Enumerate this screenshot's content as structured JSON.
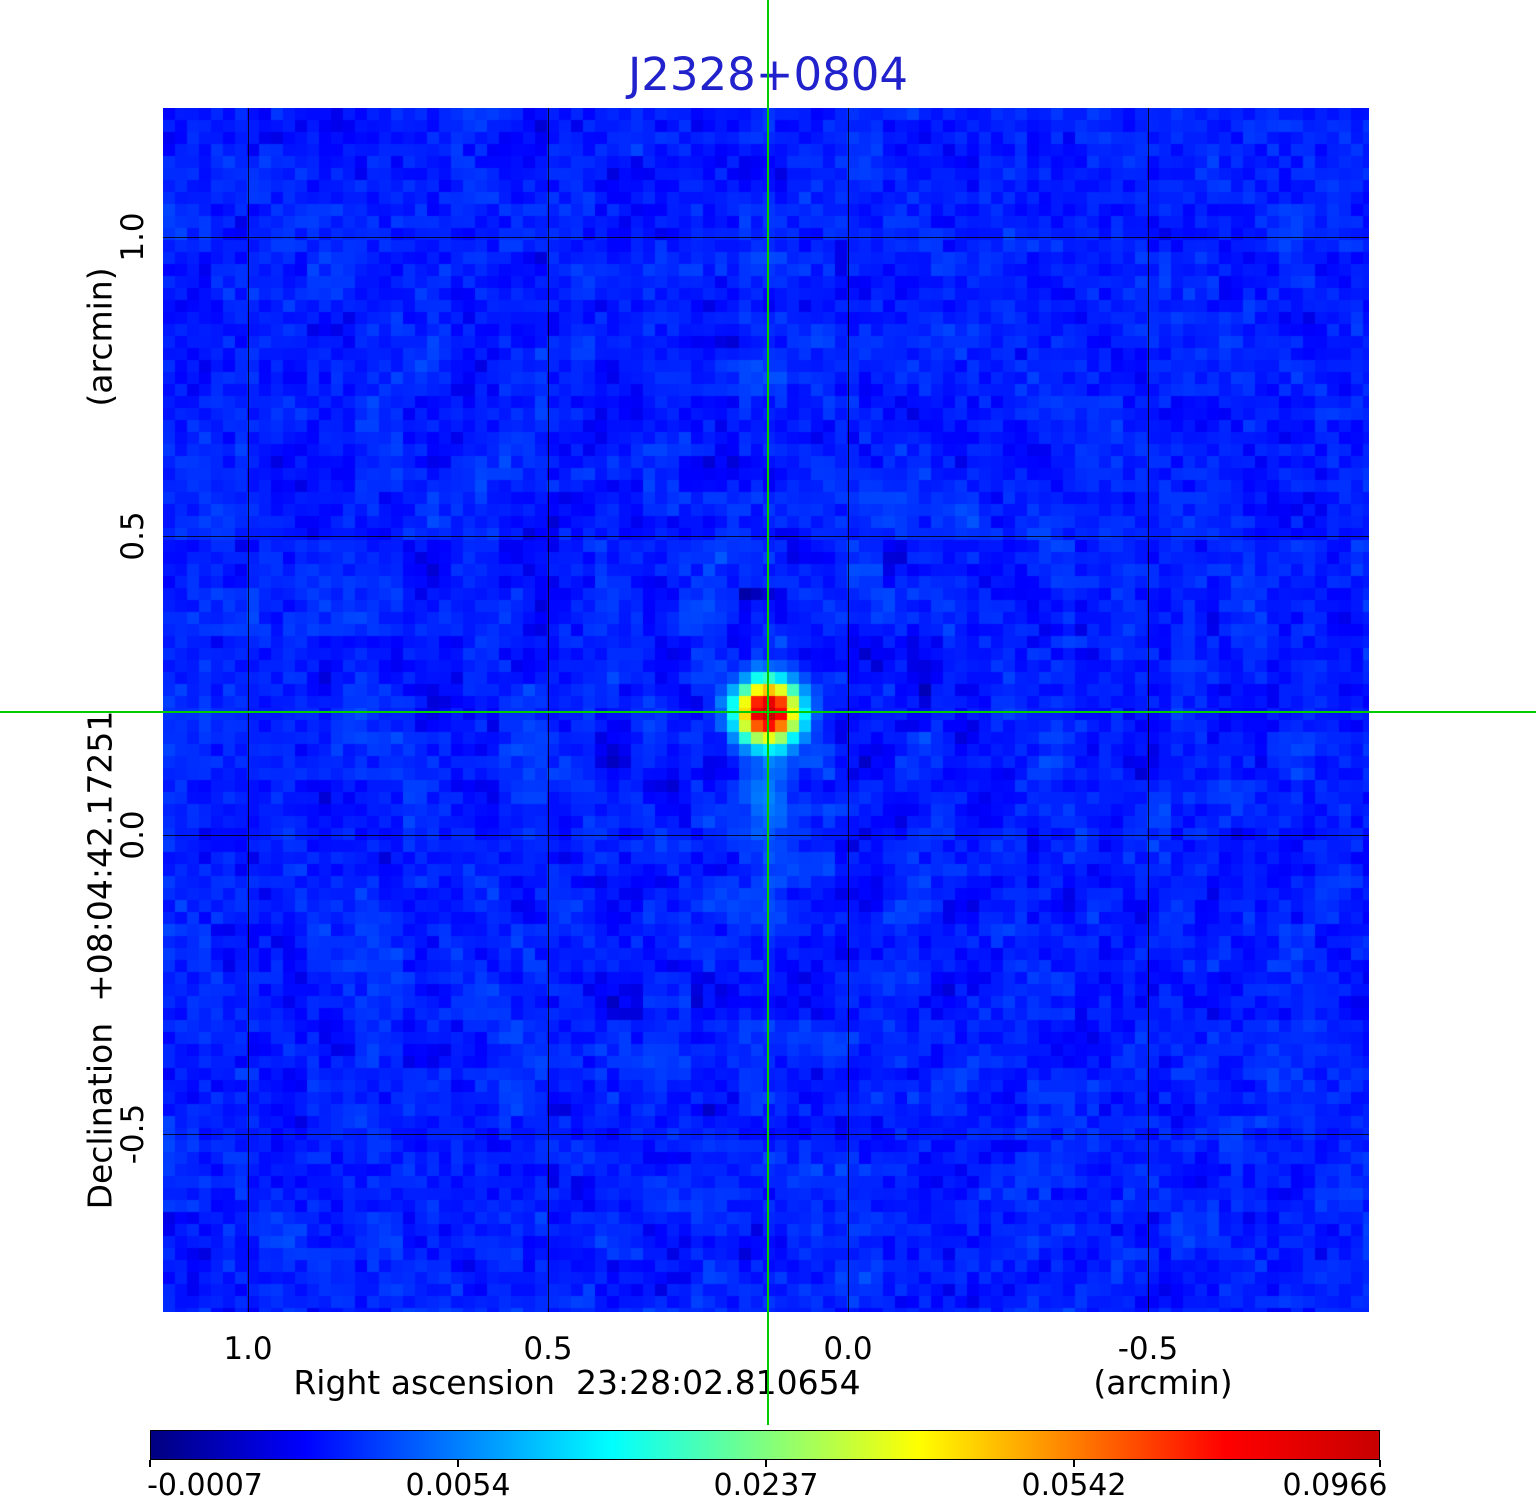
{
  "colors": {
    "title": "#2222cc",
    "crosshair": "#00cc00",
    "grid": "#000000",
    "page_background": "#ffffff",
    "text": "#000000"
  },
  "chart_data": {
    "type": "heatmap",
    "title": "J2328+0804",
    "xlabel": "Right ascension  23:28:02.810654",
    "xunit": "(arcmin)",
    "ylabel": "Declination  +08:04:42.17251",
    "yunit": "(arcmin)",
    "x_ticks": {
      "values": [
        1.0,
        0.5,
        0.0,
        -0.5
      ],
      "labels": [
        "1.0",
        "0.5",
        "0.0",
        "-0.5"
      ]
    },
    "y_ticks": {
      "values": [
        1.0,
        0.5,
        0.0,
        -0.5
      ],
      "labels": [
        "1.0",
        "0.5",
        "0.0",
        "-0.5"
      ]
    },
    "x_range_arcmin": [
      1.1417,
      -0.8683
    ],
    "y_range_arcmin": [
      1.2157,
      -0.7977
    ],
    "grid": true,
    "crosshair_arcmin": {
      "x": 0.1333,
      "y": 0.2057
    },
    "source": {
      "peak_value": 0.0966,
      "x_arcmin": 0.1333,
      "y_arcmin": 0.2057,
      "sigma_map_pixels": 1.45
    },
    "background": {
      "mean": 0.0016,
      "sigma": 0.00075
    },
    "map_pixel_size_px": 12,
    "intensity_stretch": "squared",
    "colorbar": {
      "vmin": -0.0007,
      "vmax": 0.0966,
      "tick_values": [
        -0.0007,
        0.0054,
        0.0237,
        0.0542,
        0.0966
      ],
      "tick_labels": [
        "-0.0007",
        "0.0054",
        "0.0237",
        "0.0542",
        "0.0966"
      ],
      "colormap": "jet",
      "stops": [
        {
          "pos": 0.0,
          "color": "#000080"
        },
        {
          "pos": 0.125,
          "color": "#0000ff"
        },
        {
          "pos": 0.375,
          "color": "#00ffff"
        },
        {
          "pos": 0.625,
          "color": "#ffff00"
        },
        {
          "pos": 0.875,
          "color": "#ff0000"
        },
        {
          "pos": 1.0,
          "color": "#c80000"
        }
      ]
    }
  }
}
